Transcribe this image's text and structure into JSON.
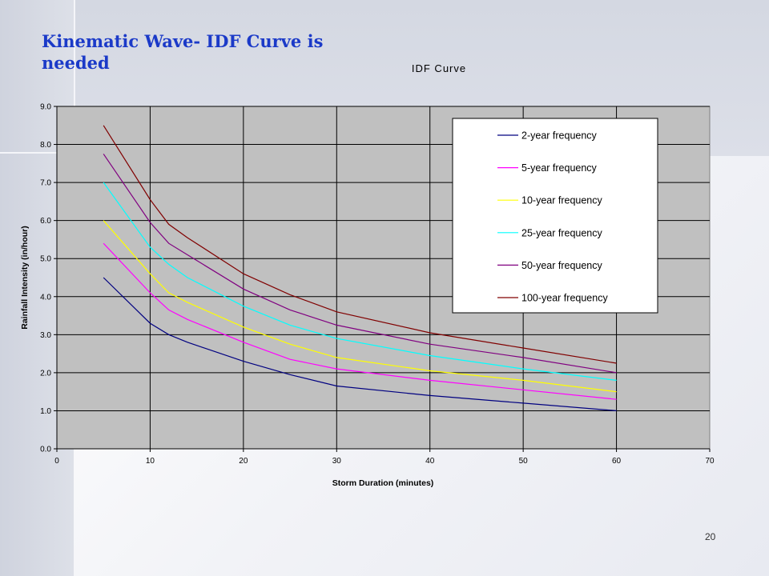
{
  "slide": {
    "title": "Kinematic Wave- IDF Curve is needed",
    "page_number": "20"
  },
  "chart_data": {
    "type": "line",
    "title": "IDF Curve",
    "xlabel": "Storm Duration (minutes)",
    "ylabel": "Rainfall Intensity (in/hour)",
    "xlim": [
      0,
      70
    ],
    "ylim": [
      0,
      9
    ],
    "xticks": [
      0,
      10,
      20,
      30,
      40,
      50,
      60,
      70
    ],
    "yticks": [
      "0.0",
      "1.0",
      "2.0",
      "3.0",
      "4.0",
      "5.0",
      "6.0",
      "7.0",
      "8.0",
      "9.0"
    ],
    "grid": true,
    "plot_background": "#c0c0c0",
    "legend_position": "top-right",
    "x": [
      5,
      10,
      12,
      14,
      20,
      25,
      30,
      40,
      50,
      60
    ],
    "series": [
      {
        "name": "2-year frequency",
        "color": "#000080",
        "values": [
          4.5,
          3.3,
          3.0,
          2.8,
          2.3,
          1.95,
          1.65,
          1.4,
          1.2,
          1.0
        ]
      },
      {
        "name": "5-year frequency",
        "color": "#ff00ff",
        "values": [
          5.4,
          4.1,
          3.65,
          3.4,
          2.8,
          2.35,
          2.1,
          1.8,
          1.55,
          1.3
        ]
      },
      {
        "name": "10-year frequency",
        "color": "#ffff00",
        "values": [
          6.0,
          4.6,
          4.1,
          3.85,
          3.2,
          2.75,
          2.4,
          2.05,
          1.8,
          1.5
        ]
      },
      {
        "name": "25-year frequency",
        "color": "#00ffff",
        "values": [
          7.0,
          5.3,
          4.85,
          4.5,
          3.75,
          3.25,
          2.9,
          2.45,
          2.1,
          1.8
        ]
      },
      {
        "name": "50-year frequency",
        "color": "#800080",
        "values": [
          7.75,
          5.95,
          5.4,
          5.1,
          4.2,
          3.65,
          3.25,
          2.75,
          2.4,
          2.0
        ]
      },
      {
        "name": "100-year frequency",
        "color": "#800000",
        "values": [
          8.5,
          6.55,
          5.9,
          5.55,
          4.6,
          4.05,
          3.6,
          3.05,
          2.65,
          2.25
        ]
      }
    ]
  }
}
